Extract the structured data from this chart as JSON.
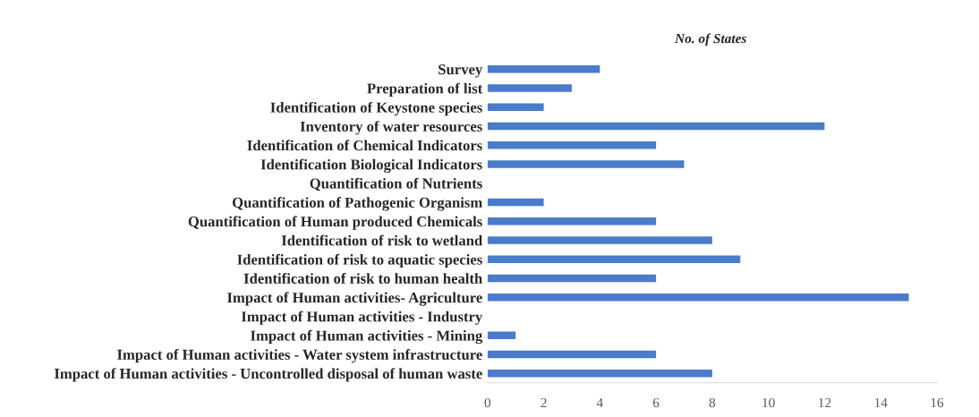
{
  "chart_data": {
    "type": "bar",
    "orientation": "horizontal",
    "title": "No. of States",
    "categories": [
      "Survey",
      "Preparation of list",
      "Identification of Keystone species",
      "Inventory of water resources",
      "Identification of Chemical Indicators",
      "Identification Biological Indicators",
      "Quantification of Nutrients",
      "Quantification of Pathogenic Organism",
      "Quantification of Human produced Chemicals",
      "Identification of risk to wetland",
      "Identification of risk to aquatic species",
      "Identification of risk to human health",
      "Impact of Human activities- Agriculture",
      "Impact of Human activities - Industry",
      "Impact of Human activities - Mining",
      "Impact of Human activities - Water system infrastructure",
      "Impact of Human activities - Uncontrolled disposal of human waste"
    ],
    "values": [
      4,
      3,
      2,
      12,
      6,
      7,
      0,
      2,
      6,
      8,
      9,
      6,
      15,
      0,
      1,
      6,
      8
    ],
    "color": "#4a7cc9",
    "xlim": [
      0,
      16
    ],
    "xticks": [
      0,
      2,
      4,
      6,
      8,
      10,
      12,
      14,
      16
    ],
    "grid": false,
    "legend": false
  }
}
